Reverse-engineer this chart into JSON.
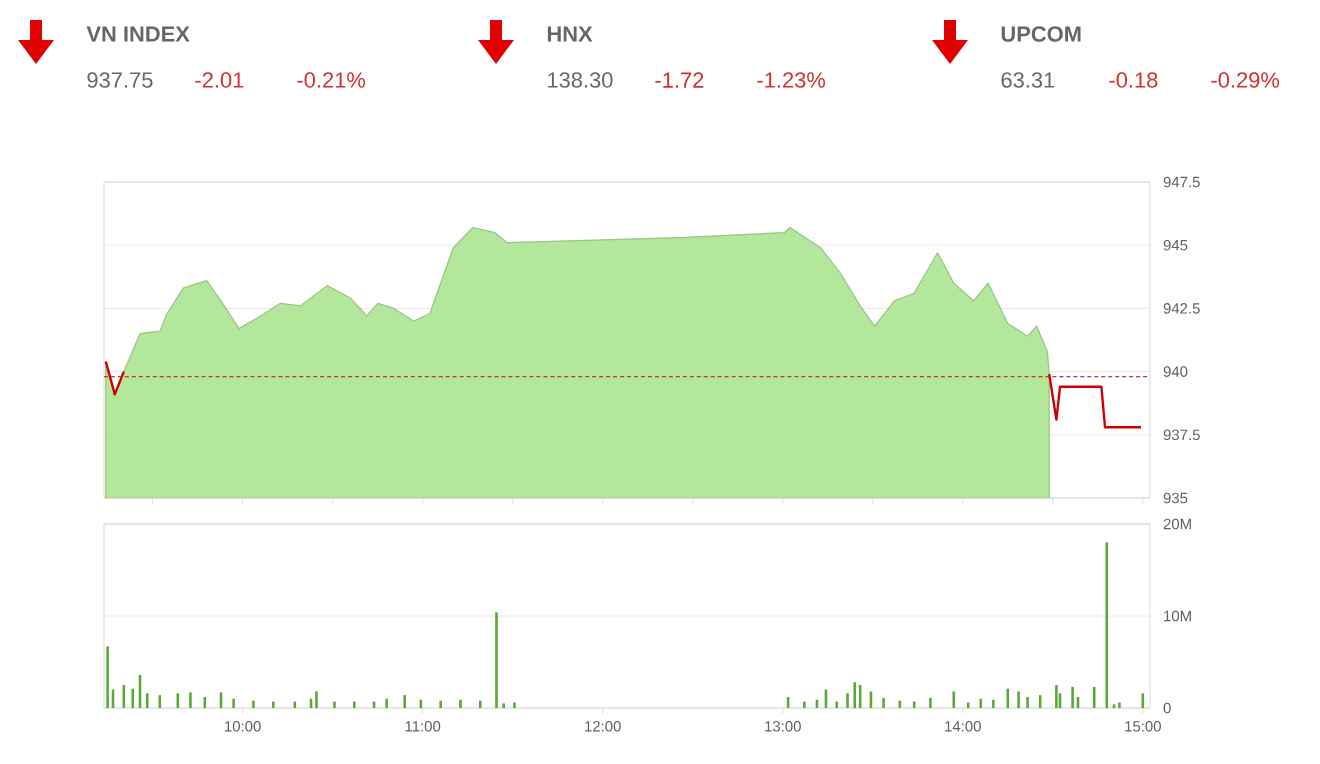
{
  "chart_data": [
    {
      "type": "other",
      "categories": [
        "VN INDEX",
        "HNX",
        "UPCOM"
      ],
      "series": [
        {
          "color": "#666666",
          "values": [
            937.75,
            138.3,
            63.31
          ],
          "value_labels": [
            "937.75",
            "138.30",
            "63.31"
          ]
        },
        {
          "color": "#d32f2f",
          "values": [
            -2.01,
            -1.72,
            -0.18
          ],
          "value_labels": [
            "-2.01",
            "-1.72",
            "-0.18"
          ]
        },
        {
          "color": "#d32f2f",
          "values": [
            -0.21,
            -1.23,
            -0.29
          ],
          "value_labels": [
            "-0.21%",
            "-1.23%",
            "-0.29%"
          ]
        }
      ]
    },
    {
      "type": "area",
      "xlim": [
        9.23,
        15.04
      ],
      "ylim": [
        935,
        947.5
      ],
      "yticks": [
        935,
        937.5,
        940,
        942.5,
        945,
        947.5
      ],
      "grid": "y",
      "tick_labels": "y",
      "ref_lines": [
        {
          "axis": "y",
          "value": 939.8,
          "color": "#d32f2f",
          "line_style": "dashed"
        }
      ],
      "series": [
        {
          "type": "area",
          "color": "#b3e79b",
          "x": [
            9.24,
            9.29,
            9.34,
            9.43,
            9.54,
            9.58,
            9.67,
            9.8,
            9.88,
            9.98,
            10.1,
            10.21,
            10.32,
            10.47,
            10.6,
            10.69,
            10.75,
            10.84,
            10.95,
            11.04,
            11.17,
            11.28,
            11.4,
            11.47,
            12.43,
            13.01,
            13.04,
            13.21,
            13.32,
            13.43,
            13.51,
            13.62,
            13.73,
            13.86,
            13.95,
            14.06,
            14.14,
            14.25,
            14.36,
            14.41,
            14.47,
            14.48
          ],
          "values": [
            940.4,
            939.1,
            940.0,
            941.5,
            941.6,
            942.3,
            943.3,
            943.6,
            942.8,
            941.7,
            942.2,
            942.7,
            942.6,
            943.4,
            942.9,
            942.2,
            942.7,
            942.5,
            942.0,
            942.3,
            944.9,
            945.7,
            945.5,
            945.1,
            945.3,
            945.5,
            945.7,
            944.9,
            943.9,
            942.6,
            941.8,
            942.8,
            943.1,
            944.7,
            943.5,
            942.8,
            943.5,
            941.9,
            941.4,
            941.8,
            940.8,
            939.9
          ]
        },
        {
          "type": "line",
          "color": "#cc0000",
          "x": [
            9.24,
            9.29,
            9.34,
            9.4,
            14.48,
            14.52,
            14.54,
            14.77,
            14.79,
            14.99
          ],
          "values": [
            940.4,
            939.1,
            940.0,
            null,
            939.9,
            938.1,
            939.4,
            939.4,
            937.8,
            937.8
          ]
        }
      ]
    },
    {
      "type": "bar",
      "xlim": [
        9.23,
        15.04
      ],
      "ylim": [
        0,
        20000000
      ],
      "grid": "y",
      "color": "#5aa83a",
      "yticks": [
        0,
        {
          "value": 10000000,
          "label": "10M"
        },
        {
          "value": 20000000,
          "label": "20M"
        }
      ],
      "xticks": [
        {
          "value": 10,
          "label": "10:00"
        },
        {
          "value": 11,
          "label": "11:00"
        },
        {
          "value": 12,
          "label": "12:00"
        },
        {
          "value": 13,
          "label": "13:00"
        },
        {
          "value": 14,
          "label": "14:00"
        },
        {
          "value": 15,
          "label": "15:00"
        }
      ],
      "x": [
        9.25,
        9.28,
        9.34,
        9.39,
        9.43,
        9.47,
        9.54,
        9.64,
        9.71,
        9.79,
        9.88,
        9.95,
        10.06,
        10.17,
        10.29,
        10.38,
        10.41,
        10.51,
        10.62,
        10.73,
        10.8,
        10.9,
        10.99,
        11.1,
        11.21,
        11.32,
        11.41,
        11.45,
        11.51,
        13.03,
        13.12,
        13.19,
        13.24,
        13.3,
        13.36,
        13.4,
        13.43,
        13.49,
        13.56,
        13.65,
        13.73,
        13.82,
        13.95,
        14.03,
        14.1,
        14.17,
        14.25,
        14.31,
        14.36,
        14.43,
        14.52,
        14.54,
        14.61,
        14.64,
        14.73,
        14.8,
        14.84,
        14.87,
        15.0
      ],
      "values": [
        6700000,
        2000000,
        2500000,
        2100000,
        3600000,
        1600000,
        1400000,
        1600000,
        1700000,
        1200000,
        1700000,
        1000000,
        800000,
        700000,
        700000,
        1000000,
        1800000,
        700000,
        700000,
        700000,
        1000000,
        1400000,
        900000,
        800000,
        900000,
        800000,
        10400000,
        500000,
        600000,
        1200000,
        700000,
        900000,
        2000000,
        700000,
        1600000,
        2800000,
        2500000,
        1800000,
        1100000,
        800000,
        700000,
        1100000,
        1800000,
        600000,
        1000000,
        900000,
        2100000,
        1800000,
        1200000,
        1400000,
        2500000,
        1600000,
        2300000,
        1200000,
        2300000,
        18000000,
        400000,
        600000,
        1600000
      ]
    }
  ]
}
